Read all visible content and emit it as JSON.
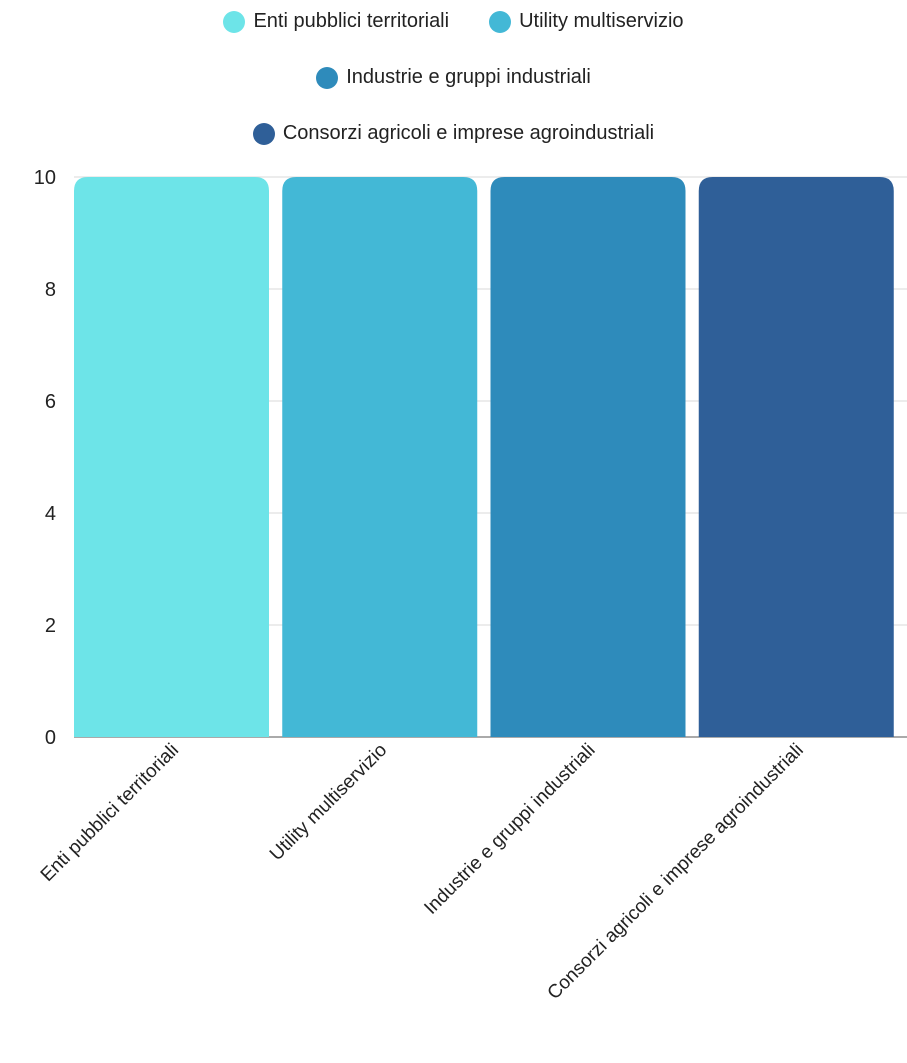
{
  "chart_data": {
    "type": "bar",
    "categories": [
      "Enti pubblici territoriali",
      "Utility multiservizio",
      "Industrie e gruppi industriali",
      "Consorzi agricoli e imprese agroindustriali"
    ],
    "series": [
      {
        "name": "Enti pubblici territoriali",
        "values": [
          10,
          null,
          null,
          null
        ],
        "color": "#6de4e8"
      },
      {
        "name": "Utility multiservizio",
        "values": [
          null,
          10,
          null,
          null
        ],
        "color": "#43b8d6"
      },
      {
        "name": "Industrie e gruppi industriali",
        "values": [
          null,
          null,
          10,
          null
        ],
        "color": "#2e8bbb"
      },
      {
        "name": "Consorzi agricoli e imprese agroindustriali",
        "values": [
          null,
          null,
          null,
          10
        ],
        "color": "#2f5f98"
      }
    ],
    "yticks": [
      "0",
      "2",
      "4",
      "6",
      "8",
      "10"
    ],
    "ylim": [
      0,
      10
    ],
    "grid": true,
    "legend_position": "top-center"
  }
}
